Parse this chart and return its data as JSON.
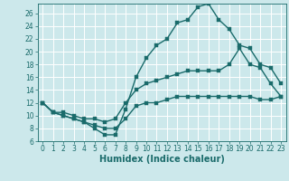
{
  "title": "",
  "xlabel": "Humidex (Indice chaleur)",
  "bg_color": "#cce8eb",
  "grid_color": "#ffffff",
  "line_color": "#1a6b6b",
  "xlim": [
    -0.5,
    23.5
  ],
  "ylim": [
    6,
    27.5
  ],
  "xticks": [
    0,
    1,
    2,
    3,
    4,
    5,
    6,
    7,
    8,
    9,
    10,
    11,
    12,
    13,
    14,
    15,
    16,
    17,
    18,
    19,
    20,
    21,
    22,
    23
  ],
  "yticks": [
    6,
    8,
    10,
    12,
    14,
    16,
    18,
    20,
    22,
    24,
    26
  ],
  "curve1_x": [
    0,
    1,
    2,
    3,
    4,
    5,
    6,
    7,
    8,
    9,
    10,
    11,
    12,
    13,
    14,
    15,
    16,
    17,
    18,
    19,
    20,
    21,
    22,
    23
  ],
  "curve1_y": [
    12,
    10.5,
    10,
    9.5,
    9.0,
    8.5,
    8.0,
    8.0,
    9.5,
    11.5,
    12,
    12,
    12.5,
    13,
    13,
    13,
    13,
    13,
    13,
    13,
    13,
    12.5,
    12.5,
    13
  ],
  "curve2_x": [
    0,
    1,
    2,
    3,
    4,
    5,
    6,
    7,
    8,
    9,
    10,
    11,
    12,
    13,
    14,
    15,
    16,
    17,
    18,
    19,
    20,
    21,
    22,
    23
  ],
  "curve2_y": [
    12,
    10.5,
    10.5,
    10,
    9.5,
    9.5,
    9.0,
    9.5,
    12,
    14,
    15,
    15.5,
    16,
    16.5,
    17,
    17,
    17,
    17,
    18,
    20.5,
    18,
    17.5,
    15,
    13
  ],
  "curve3_x": [
    0,
    1,
    2,
    3,
    4,
    5,
    6,
    7,
    8,
    9,
    10,
    11,
    12,
    13,
    14,
    15,
    16,
    17,
    18,
    19,
    20,
    21,
    22,
    23
  ],
  "curve3_y": [
    12,
    10.5,
    10,
    9.5,
    9,
    8,
    7,
    7,
    11,
    16,
    19,
    21,
    22,
    24.5,
    25,
    27,
    27.5,
    25,
    23.5,
    21,
    20.5,
    18,
    17.5,
    15
  ],
  "marker_size": 2.5,
  "line_width": 1.0,
  "font_size_label": 7,
  "font_size_tick": 5.5
}
